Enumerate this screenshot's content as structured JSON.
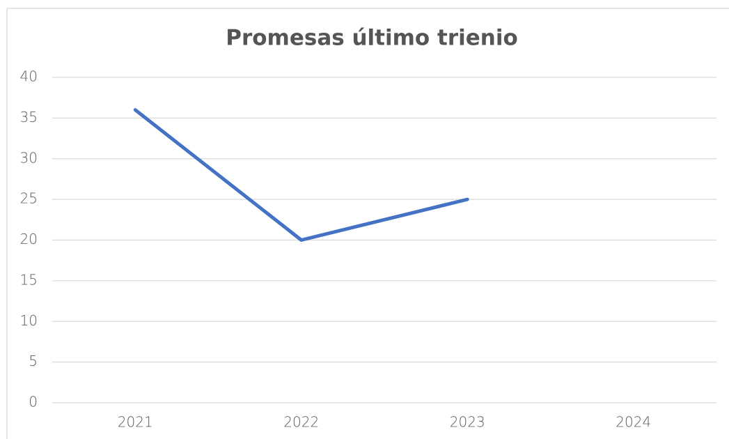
{
  "chart_data": {
    "type": "line",
    "title": "Promesas último trienio",
    "categories": [
      "2021",
      "2022",
      "2023",
      "2024"
    ],
    "series": [
      {
        "name": "Promesas",
        "color": "#4472c4",
        "values": [
          36,
          20,
          25,
          null
        ]
      }
    ],
    "ylim": [
      0,
      40
    ],
    "yticks": [
      0,
      5,
      10,
      15,
      20,
      25,
      30,
      35,
      40
    ],
    "grid": true
  }
}
